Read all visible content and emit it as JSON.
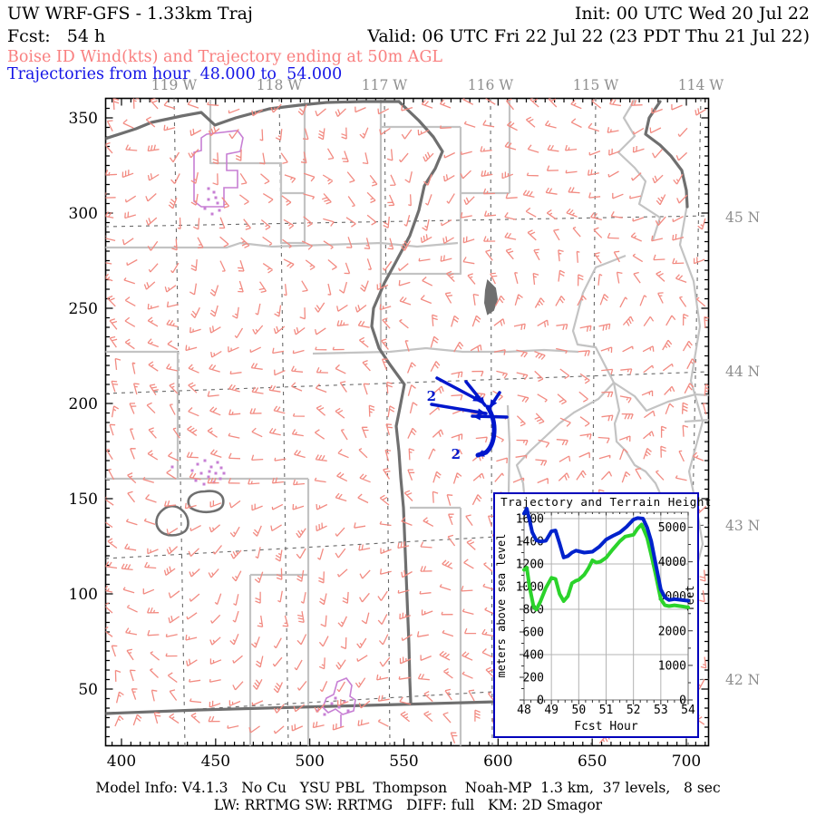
{
  "header": {
    "title_left": "UW WRF-GFS - 1.33km Traj",
    "init": "Init: 00 UTC Wed 20 Jul 22",
    "fcst": "Fcst:   54 h",
    "valid": "Valid: 06 UTC Fri 22 Jul 22 (23 PDT Thu 21 Jul 22)",
    "product_line": "Boise ID Wind(kts) and Trajectory ending at 50m AGL",
    "trajectory_line": "Trajectories from hour  48.000 to  54.000"
  },
  "footer": {
    "line1": "Model Info: V4.1.3   No Cu   YSU PBL  Thompson    Noah-MP  1.3 km,  37 levels,   8 sec",
    "line2": "LW: RRTMG SW: RRTMG   DIFF: full   KM: 2D Smagor"
  },
  "map": {
    "x_tick_labels": [
      "400",
      "450",
      "500",
      "550",
      "600",
      "650",
      "700"
    ],
    "y_tick_labels": [
      "350",
      "300",
      "250",
      "200",
      "150",
      "100",
      "50"
    ],
    "lon_labels": [
      "119 W",
      "118 W",
      "117 W",
      "116 W",
      "115 W",
      "114 W"
    ],
    "lat_labels": [
      "45 N",
      "44 N",
      "43 N",
      "42 N"
    ],
    "trajectory_point_labels": [
      "2",
      "2"
    ],
    "colors": {
      "wind_barb": "#f28b82",
      "county_line": "#c3c3c3",
      "state_border": "#6f6f6f",
      "graticule": "#6a6a6a",
      "trajectory": "#0016cc",
      "city_boundary": "#c77fd4",
      "axis_text_gray": "#8e8e8e"
    }
  },
  "chart_data": {
    "type": "line",
    "title": "Trajectory and Terrain Height",
    "xlabel": "Fcst Hour",
    "ylabel": "meters above sea level",
    "y2label": "feet",
    "xlim": [
      48,
      54
    ],
    "ylim": [
      0,
      1700
    ],
    "y2lim_feet": [
      0,
      5577
    ],
    "x_tick_labels": [
      "48",
      "49",
      "50",
      "51",
      "52",
      "53",
      "54"
    ],
    "y_tick_labels": [
      "0",
      "200",
      "400",
      "600",
      "800",
      "1000",
      "1200",
      "1400",
      "1600"
    ],
    "y2_tick_labels": [
      "0",
      "1000",
      "2000",
      "3000",
      "4000",
      "5000"
    ],
    "grid": true,
    "series": [
      {
        "name": "trajectory-height-m",
        "color": "#0022cc",
        "x": [
          48.0,
          48.1,
          48.2,
          48.3,
          48.45,
          48.6,
          48.8,
          49.0,
          49.15,
          49.3,
          49.45,
          49.6,
          49.75,
          49.9,
          50.0,
          50.2,
          50.5,
          50.75,
          51.0,
          51.25,
          51.5,
          51.75,
          52.0,
          52.15,
          52.35,
          52.5,
          52.65,
          52.8,
          53.0,
          53.15,
          53.3,
          53.5,
          53.7,
          54.0
        ],
        "y": [
          1645,
          1688,
          1590,
          1480,
          1408,
          1398,
          1405,
          1488,
          1495,
          1380,
          1258,
          1270,
          1300,
          1318,
          1312,
          1300,
          1308,
          1352,
          1415,
          1448,
          1478,
          1528,
          1592,
          1605,
          1600,
          1520,
          1400,
          1215,
          975,
          905,
          882,
          890,
          884,
          875
        ]
      },
      {
        "name": "terrain-height-m",
        "color": "#2bd32b",
        "x": [
          48.0,
          48.1,
          48.2,
          48.35,
          48.45,
          48.6,
          48.8,
          49.0,
          49.15,
          49.3,
          49.45,
          49.6,
          49.75,
          49.9,
          50.0,
          50.2,
          50.35,
          50.5,
          50.65,
          50.8,
          51.0,
          51.25,
          51.5,
          51.7,
          52.0,
          52.15,
          52.3,
          52.5,
          52.65,
          52.8,
          53.0,
          53.15,
          53.3,
          53.5,
          53.7,
          54.0
        ],
        "y": [
          1148,
          1168,
          1000,
          820,
          798,
          870,
          990,
          1078,
          1068,
          935,
          872,
          915,
          1030,
          1052,
          1060,
          1105,
          1160,
          1232,
          1212,
          1222,
          1255,
          1330,
          1400,
          1442,
          1458,
          1512,
          1548,
          1430,
          1280,
          1120,
          890,
          835,
          828,
          835,
          828,
          818
        ]
      }
    ]
  }
}
